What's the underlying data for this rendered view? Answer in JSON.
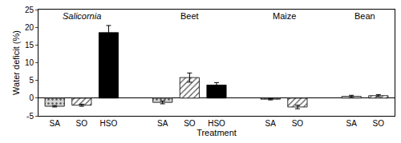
{
  "chart_data": {
    "type": "bar",
    "xlabel": "Treatment",
    "ylabel": "Water deficit (%)",
    "categories": [
      "SA",
      "SO",
      "HSO",
      null,
      "SA",
      "SO",
      "HSO",
      null,
      "SA",
      "SO",
      null,
      "SA",
      "SO"
    ],
    "series": [
      {
        "color": "#d4d4d4",
        "marker": "dotted",
        "values": [
          -2.3,
          null,
          null,
          null,
          -1.2,
          null,
          null,
          null,
          -0.3,
          null,
          null,
          0.5,
          null
        ],
        "errors": [
          0.2,
          null,
          null,
          null,
          0.4,
          null,
          null,
          null,
          0.2,
          null,
          null,
          0.3,
          null
        ]
      },
      {
        "color": "#ffffff",
        "marker": "hatched",
        "values": [
          null,
          -2.0,
          null,
          null,
          null,
          5.8,
          null,
          null,
          null,
          -2.5,
          null,
          null,
          0.7
        ],
        "errors": [
          null,
          0.3,
          null,
          null,
          null,
          1.3,
          null,
          null,
          null,
          0.5,
          null,
          null,
          0.3
        ]
      },
      {
        "color": "#000000",
        "marker": "solid",
        "values": [
          null,
          null,
          18.5,
          null,
          null,
          null,
          3.7,
          null,
          null,
          null,
          null,
          null,
          null
        ],
        "errors": [
          null,
          null,
          2.0,
          null,
          null,
          null,
          0.7,
          null,
          null,
          null,
          null,
          null,
          null
        ]
      }
    ],
    "annotations": [
      {
        "text": "Salicornia",
        "x": 1
      },
      {
        "text": "Beet",
        "x": 5
      },
      {
        "text": "Maize",
        "x": 8.5
      },
      {
        "text": "Bean",
        "x": 11.5
      }
    ],
    "ylim": [
      -5,
      25
    ],
    "yticks": [
      -5,
      0,
      5,
      10,
      15,
      20,
      25
    ],
    "grid": false
  }
}
